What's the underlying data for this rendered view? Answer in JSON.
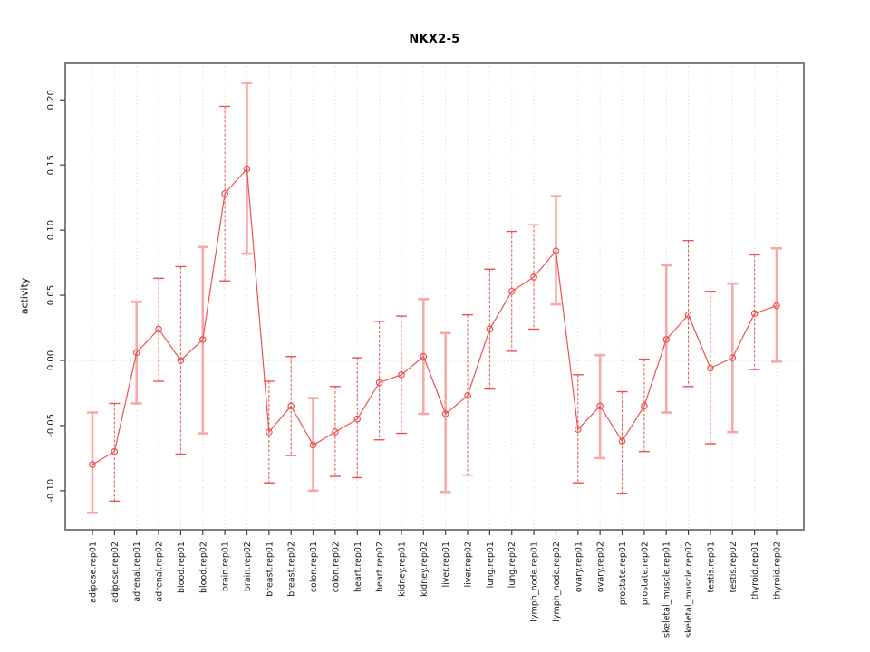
{
  "figure": {
    "title": "NKX2-5",
    "ylabel": "activity"
  },
  "chart_data": {
    "type": "line",
    "subtype": "point-estimates-with-error-bars",
    "title": "NKX2-5",
    "xlabel": "",
    "ylabel": "activity",
    "ylim": [
      -0.13,
      0.228
    ],
    "yticks": [
      0.2,
      0.15,
      0.1,
      0.05,
      0.0,
      -0.05,
      -0.1
    ],
    "grid": {
      "vertical_dotted_per_category": true,
      "horizontal_zero_line_dotted": true
    },
    "legend_position": "none",
    "categories": [
      "adipose.rep01",
      "adipose.rep02",
      "adrenal.rep01",
      "adrenal.rep02",
      "blood.rep01",
      "blood.rep02",
      "brain.rep01",
      "brain.rep02",
      "breast.rep01",
      "breast.rep02",
      "colon.rep01",
      "colon.rep02",
      "heart.rep01",
      "heart.rep02",
      "kidney.rep01",
      "kidney.rep02",
      "liver.rep01",
      "liver.rep02",
      "lung.rep01",
      "lung.rep02",
      "lymph_node.rep01",
      "lymph_node.rep02",
      "ovary.rep01",
      "ovary.rep02",
      "prostate.rep01",
      "prostate.rep02",
      "skeletal_muscle.rep01",
      "skeletal_muscle.rep02",
      "testis.rep01",
      "testis.rep02",
      "thyroid.rep01",
      "thyroid.rep02"
    ],
    "series": [
      {
        "name": "activity",
        "values": [
          -0.08,
          -0.07,
          0.006,
          0.024,
          0.0,
          0.016,
          0.128,
          0.147,
          -0.055,
          -0.035,
          -0.065,
          -0.055,
          -0.045,
          -0.017,
          -0.011,
          0.003,
          -0.041,
          -0.027,
          0.024,
          0.053,
          0.064,
          0.084,
          -0.053,
          -0.035,
          -0.062,
          -0.035,
          0.016,
          0.035,
          -0.006,
          0.002,
          0.036,
          0.042
        ],
        "ci_low": [
          -0.117,
          -0.108,
          -0.033,
          -0.016,
          -0.072,
          -0.056,
          0.061,
          0.082,
          -0.094,
          -0.073,
          -0.1,
          -0.089,
          -0.09,
          -0.061,
          -0.056,
          -0.041,
          -0.101,
          -0.088,
          -0.022,
          0.007,
          0.024,
          0.043,
          -0.094,
          -0.075,
          -0.102,
          -0.07,
          -0.04,
          -0.02,
          -0.064,
          -0.055,
          -0.007,
          -0.001
        ],
        "ci_high": [
          -0.04,
          -0.033,
          0.045,
          0.063,
          0.072,
          0.087,
          0.195,
          0.213,
          -0.016,
          0.003,
          -0.029,
          -0.02,
          0.002,
          0.03,
          0.034,
          0.047,
          0.021,
          0.035,
          0.07,
          0.099,
          0.104,
          0.126,
          -0.011,
          0.004,
          -0.024,
          0.001,
          0.073,
          0.092,
          0.053,
          0.059,
          0.081,
          0.086
        ]
      }
    ],
    "error_bar_styles": [
      "solid",
      "dashed",
      "solid",
      "dashed",
      "dashed",
      "solid",
      "dashed",
      "solid",
      "dashed",
      "dashed",
      "solid",
      "dashed",
      "dashed",
      "dashed",
      "dashed",
      "solid",
      "solid",
      "dashed",
      "dashed",
      "dashed",
      "dashed",
      "solid",
      "dashed",
      "solid",
      "dashed",
      "dashed",
      "solid",
      "dashed",
      "dashed",
      "solid",
      "dashed",
      "solid"
    ],
    "colors": {
      "line": "#ee5250",
      "marker": "#ee5250",
      "error_bar_light": "#f8a9a7",
      "error_bar_dark": "#ee5250",
      "grid": "#d8d8d8",
      "zero_line": "#c8c8c8",
      "axis_box": "#808080",
      "tick": "#404040",
      "text": "#1a1a1a"
    }
  }
}
